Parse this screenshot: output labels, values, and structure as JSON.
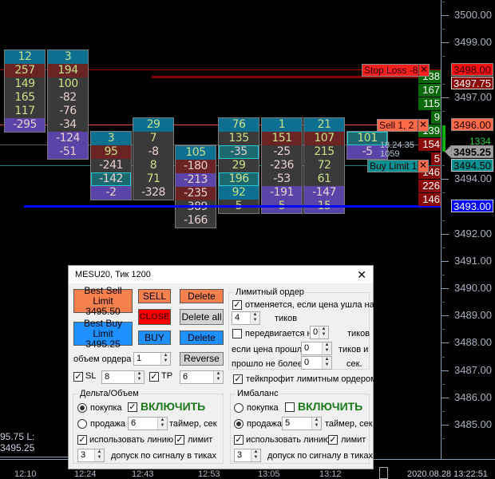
{
  "chart": {
    "price_axis": [
      "3500.00",
      "3499.00",
      "3497.00",
      "3494.00",
      "3492.00",
      "3491.00",
      "3490.00",
      "3489.00",
      "3488.00",
      "3487.00",
      "3486.00",
      "3485.00"
    ],
    "price_axis_values": [
      3500,
      3499,
      3497,
      3494,
      3492,
      3491,
      3490,
      3489,
      3488,
      3487,
      3486,
      3485
    ],
    "columns": [
      {
        "high": 3498.5,
        "values": [
          12,
          257,
          149,
          165,
          117,
          -295
        ],
        "tints": [
          "t",
          "r",
          "",
          "",
          "",
          "p"
        ]
      },
      {
        "high": 3498.5,
        "values": [
          3,
          194,
          100,
          -82,
          -76,
          -34,
          -124,
          -51
        ],
        "tints": [
          "t",
          "r",
          "",
          "",
          "",
          "",
          "p",
          "p"
        ]
      },
      {
        "high": 3495.5,
        "values": [
          3,
          95,
          -241,
          -142,
          -2
        ],
        "tints": [
          "t",
          "r",
          "",
          "c",
          "p"
        ]
      },
      {
        "high": 3496.0,
        "values": [
          29,
          7,
          -8,
          8,
          71,
          -328
        ],
        "tints": [
          "t",
          "",
          "",
          "",
          "",
          ""
        ]
      },
      {
        "high": 3495.0,
        "values": [
          105,
          -180,
          -213,
          -235,
          -389,
          -166
        ],
        "tints": [
          "t",
          "r",
          "p",
          "r",
          "",
          ""
        ]
      },
      {
        "high": 3496.0,
        "values": [
          76,
          135,
          -35,
          29,
          196,
          92,
          5
        ],
        "tints": [
          "t",
          "",
          "c",
          "",
          "c",
          "t",
          ""
        ]
      },
      {
        "high": 3496.0,
        "values": [
          1,
          151,
          -25,
          -236,
          -53,
          -191,
          5
        ],
        "tints": [
          "t",
          "r",
          "",
          "",
          "",
          "p",
          "p"
        ]
      },
      {
        "high": 3496.0,
        "values": [
          21,
          107,
          215,
          72,
          61,
          -147,
          15
        ],
        "tints": [
          "t",
          "r",
          "",
          "",
          "",
          "p",
          "p"
        ]
      },
      {
        "high": 3495.5,
        "values": [
          101,
          -5
        ],
        "tints": [
          "c",
          "p"
        ]
      }
    ],
    "volume_profile": [
      {
        "price": 3497.75,
        "value": "138",
        "color": "#0a6a0a"
      },
      {
        "price": 3497.25,
        "value": "167",
        "color": "#0a6a0a"
      },
      {
        "price": 3496.75,
        "value": "115",
        "color": "#0a6a0a"
      },
      {
        "price": 3496.25,
        "value": "9",
        "color": "#0a6a0a"
      },
      {
        "price": 3495.75,
        "value": "139",
        "color": "#0a6a0a"
      },
      {
        "price": 3495.25,
        "value": "154",
        "color": "#8a0a0a"
      },
      {
        "price": 3494.75,
        "value": "5",
        "color": "#8a0a0a"
      },
      {
        "price": 3494.25,
        "value": "146",
        "color": "#8a0a0a"
      },
      {
        "price": 3493.75,
        "value": "226",
        "color": "#8a0a0a"
      },
      {
        "price": 3493.25,
        "value": "146",
        "color": "#8a0a0a"
      }
    ],
    "levels": {
      "stop_loss": {
        "price": "3498.00",
        "label": "Stop Loss   -8",
        "color": "#ff2020"
      },
      "ask": {
        "price": "3497.75",
        "color": "#8a0808"
      },
      "sell": {
        "price": "3496.00",
        "label": "Sell  1,  2",
        "color": "#ff6a4a"
      },
      "last": {
        "price": "3495.25",
        "color": "#a0a0a0"
      },
      "buy": {
        "price": "3494.50",
        "label": "Buy Limit  1",
        "color": "#0a9090"
      },
      "bid": {
        "price": "3493.00",
        "color": "#0000ff"
      }
    },
    "delta_total": "1334",
    "overlay_time": "18.24.35",
    "overlay_volume": "1059",
    "status_text": "95.75  L: 3495.25",
    "time_axis": [
      "12:10",
      "12:24",
      "12:43",
      "12:53",
      "13:05",
      "13:12"
    ],
    "datetime": "2020.08.28 13:22:51"
  },
  "dialog": {
    "title": "MESU20, Тик  1200",
    "close": "✕",
    "best_sell": {
      "label": "Best Sell Limit",
      "price": "3495.50"
    },
    "best_buy": {
      "label": "Best Buy Limit",
      "price": "3495.25"
    },
    "sell": "SELL",
    "close_btn": "CLOSE",
    "buy": "BUY",
    "delete_sell": "Delete",
    "delete_all": "Delete all",
    "delete_buy": "Delete",
    "reverse": "Reverse",
    "volume_label": "объем ордера",
    "volume_value": "1",
    "sl_label": "SL",
    "sl_value": "8",
    "sl_checked": true,
    "tp_label": "TP",
    "tp_value": "6",
    "tp_checked": true,
    "limit_group": {
      "title": "Лимитный ордер",
      "cancel_label": "отменяется, если цена ушла на",
      "cancel_checked": true,
      "cancel_ticks": "4",
      "ticks1": "тиков",
      "move_label": "передвигается на",
      "move_checked": false,
      "move_ticks": "0",
      "ticks2": "тиков",
      "passed_label": "если цена прошла",
      "passed_value": "0",
      "ticks3": "тиков и",
      "time_label": "прошло не более",
      "time_value": "0",
      "sec": "сек."
    },
    "takeprofit_label": "тейкпрофит лимитным ордером",
    "takeprofit_checked": true,
    "delta_group": {
      "title": "Дельта/Объем",
      "buy": "покупка",
      "sell": "продажа",
      "buy_selected": true,
      "enable": "ВКЛЮЧИТЬ",
      "enable_checked": true,
      "timer_value": "6",
      "timer_label": "таймер, сек",
      "use_line": "использовать линию",
      "use_line_checked": true,
      "limit": "лимит",
      "limit_checked": true,
      "tolerance_value": "3",
      "tolerance_label": "допуск по сигналу в тиках"
    },
    "imbalance_group": {
      "title": "Имбаланс",
      "buy": "покупка",
      "sell": "продажа",
      "buy_selected": false,
      "enable": "ВКЛЮЧИТЬ",
      "enable_checked": false,
      "timer_value": "5",
      "timer_label": "таймер, сек",
      "use_line": "использовать линию",
      "use_line_checked": true,
      "limit": "лимит",
      "limit_checked": true,
      "tolerance_value": "3",
      "tolerance_label": "допуск по сигналу в тиках"
    }
  }
}
